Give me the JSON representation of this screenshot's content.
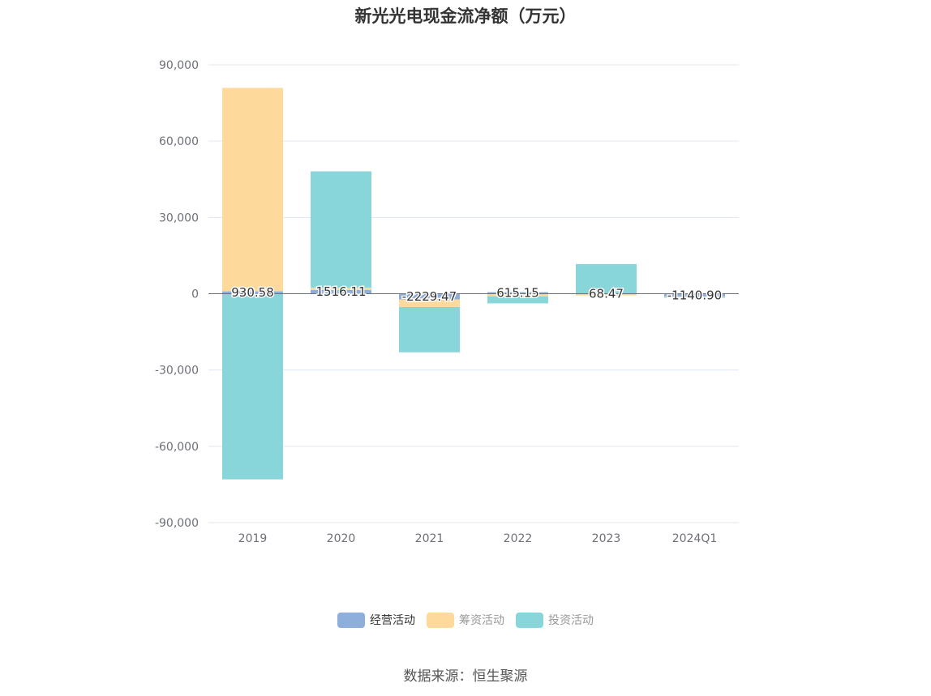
{
  "title": "新光光电现金流净额（万元）",
  "source": "数据来源：恒生聚源",
  "chart_data": {
    "type": "bar",
    "stacked": true,
    "categories": [
      "2019",
      "2020",
      "2021",
      "2022",
      "2023",
      "2024Q1"
    ],
    "ylim": [
      -90000,
      90000
    ],
    "yticks": [
      90000,
      60000,
      30000,
      0,
      -30000,
      -60000,
      -90000
    ],
    "ytick_labels": [
      "90,000",
      "60,000",
      "30,000",
      "0",
      "-30,000",
      "-60,000",
      "-90,000"
    ],
    "grid": true,
    "legend_position": "bottom",
    "series": [
      {
        "name": "经营活动",
        "color": "#8eaedb",
        "legend_text_color": "#333333",
        "values": [
          930.58,
          1516.11,
          -2229.47,
          615.15,
          68.47,
          -1140.9
        ],
        "labels": [
          "930.58",
          "1516.11",
          "-2229.47",
          "615.15",
          "68.47",
          "-1140.90"
        ]
      },
      {
        "name": "筹资活动",
        "color": "#fed99c",
        "legend_text_color": "#999999",
        "values": [
          80000,
          900,
          -3000,
          -1000,
          -700,
          -200
        ]
      },
      {
        "name": "投资活动",
        "color": "#88d6d9",
        "legend_text_color": "#999999",
        "values": [
          -73000,
          45700,
          -17800,
          -2800,
          11600,
          -300
        ]
      }
    ]
  }
}
